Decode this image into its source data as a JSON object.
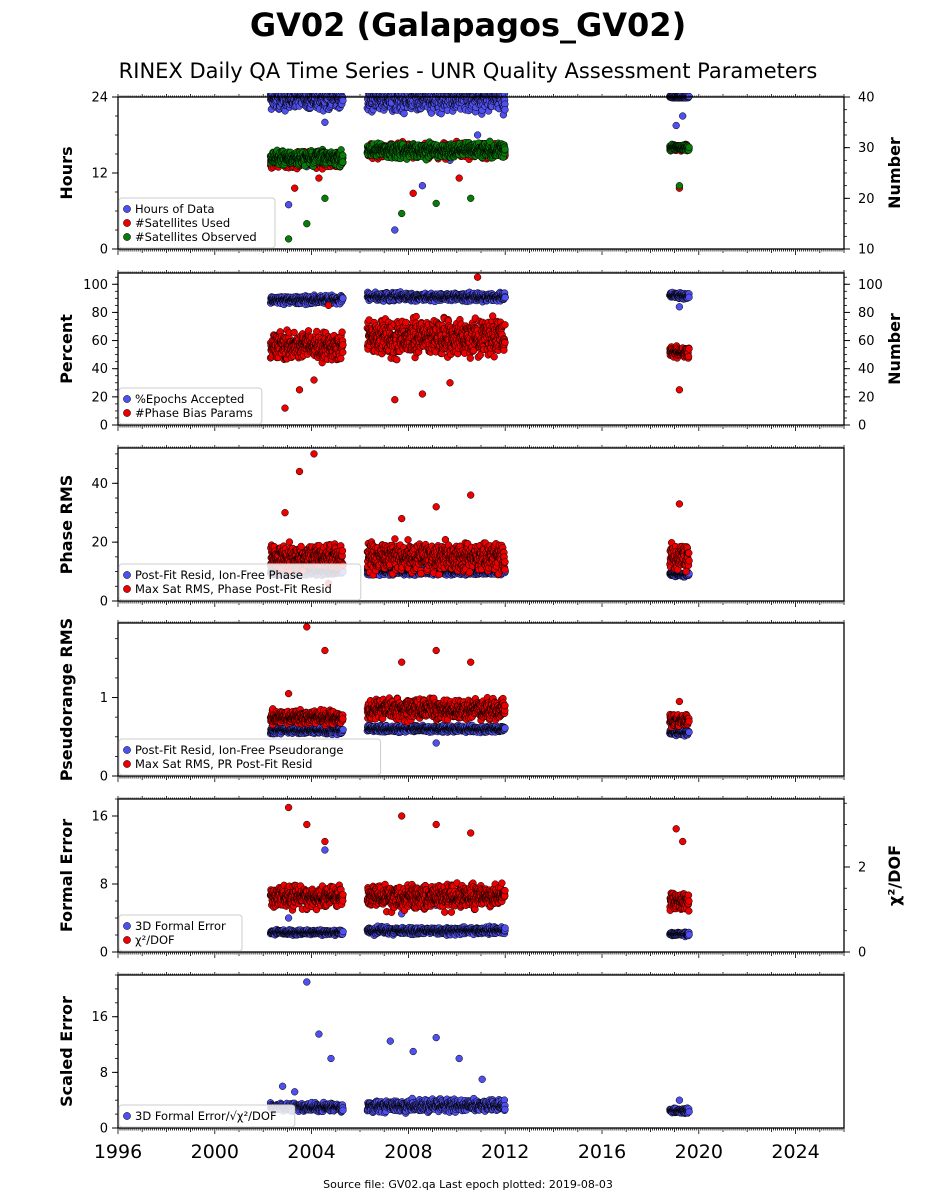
{
  "title": "GV02 (Galapagos_GV02)",
  "subtitle": "RINEX Daily QA Time Series - UNR Quality Assessment Parameters",
  "footer": "Source file: GV02.qa Last epoch plotted: 2019-08-03",
  "colors": {
    "blue": "#5050f0",
    "red": "#ee0000",
    "green": "#0a7a0a",
    "edge": "#000000"
  },
  "chart_data": [
    {
      "type": "scatter",
      "ylabel": "Hours",
      "ylabel2": "Number",
      "ylim": [
        0,
        24
      ],
      "yticks": [
        "0",
        "12",
        "24"
      ],
      "ylim2": [
        10,
        40
      ],
      "yticks2": [
        "10",
        "20",
        "30",
        "40"
      ],
      "xlim": [
        1996,
        2026
      ],
      "legend": [
        "Hours of Data",
        "#Satellites Used",
        "#Satellites Observed"
      ],
      "series": [
        {
          "name": "Hours of Data",
          "axis": "left",
          "color": "blue",
          "segments": [
            {
              "x": [
                2002.3,
                2005.3
              ],
              "base": 23.8,
              "spread": 2.5,
              "outliers": [
                7.0,
                13.0,
                20.0
              ]
            },
            {
              "x": [
                2006.3,
                2012.0
              ],
              "base": 23.8,
              "spread": 3.0,
              "outliers": [
                3.0,
                10.0,
                14.0,
                18.0
              ]
            },
            {
              "x": [
                2018.8,
                2019.6
              ],
              "base": 24.0,
              "spread": 0.3,
              "outliers": [
                19.5,
                21.0
              ]
            }
          ]
        },
        {
          "name": "#Satellites Used",
          "axis": "right",
          "color": "red",
          "segments": [
            {
              "x": [
                2002.3,
                2005.3
              ],
              "base": 27.5,
              "spread": 2.0,
              "outliers": [
                22.0,
                24.0
              ]
            },
            {
              "x": [
                2006.3,
                2012.0
              ],
              "base": 29.5,
              "spread": 2.0,
              "outliers": [
                21.0,
                24.0
              ]
            },
            {
              "x": [
                2018.8,
                2019.6
              ],
              "base": 30.0,
              "spread": 0.8,
              "outliers": [
                22.0
              ]
            }
          ]
        },
        {
          "name": "#Satellites Observed",
          "axis": "right",
          "color": "green",
          "segments": [
            {
              "x": [
                2002.3,
                2005.3
              ],
              "base": 28.0,
              "spread": 2.0,
              "outliers": [
                12.0,
                15.0,
                20.0
              ]
            },
            {
              "x": [
                2006.3,
                2012.0
              ],
              "base": 29.5,
              "spread": 2.0,
              "outliers": [
                17.0,
                19.0,
                20.0
              ]
            },
            {
              "x": [
                2018.8,
                2019.6
              ],
              "base": 30.0,
              "spread": 0.8,
              "outliers": [
                22.5
              ]
            }
          ]
        }
      ]
    },
    {
      "type": "scatter",
      "ylabel": "Percent",
      "ylabel2": "Number",
      "ylim": [
        0,
        108
      ],
      "yticks": [
        "0",
        "20",
        "40",
        "60",
        "80",
        "100"
      ],
      "ylim2": [
        0,
        108
      ],
      "yticks2": [
        "0",
        "20",
        "40",
        "60",
        "80",
        "100"
      ],
      "xlim": [
        1996,
        2026
      ],
      "legend": [
        "%Epochs Accepted",
        "#Phase Bias Params"
      ],
      "series": [
        {
          "name": "%Epochs Accepted",
          "axis": "left",
          "color": "blue",
          "segments": [
            {
              "x": [
                2002.3,
                2005.3
              ],
              "base": 89,
              "spread": 4,
              "outliers": []
            },
            {
              "x": [
                2006.3,
                2012.0
              ],
              "base": 91,
              "spread": 4,
              "outliers": []
            },
            {
              "x": [
                2018.8,
                2019.6
              ],
              "base": 92,
              "spread": 3,
              "outliers": [
                84
              ]
            }
          ]
        },
        {
          "name": "#Phase Bias Params",
          "axis": "right",
          "color": "red",
          "segments": [
            {
              "x": [
                2002.3,
                2005.3
              ],
              "base": 56,
              "spread": 14,
              "outliers": [
                12,
                25,
                32,
                85
              ]
            },
            {
              "x": [
                2006.3,
                2012.0
              ],
              "base": 62,
              "spread": 18,
              "outliers": [
                18,
                22,
                30,
                105
              ]
            },
            {
              "x": [
                2018.8,
                2019.6
              ],
              "base": 52,
              "spread": 6,
              "outliers": [
                25
              ]
            }
          ]
        }
      ]
    },
    {
      "type": "scatter",
      "ylabel": "Phase RMS",
      "ylim": [
        0,
        52
      ],
      "yticks": [
        "0",
        "20",
        "40"
      ],
      "xlim": [
        1996,
        2026
      ],
      "legend": [
        "Post-Fit Resid, Ion-Free Phase",
        "Max Sat RMS, Phase Post-Fit Resid"
      ],
      "series": [
        {
          "name": "Post-Fit Resid, Ion-Free Phase",
          "axis": "left",
          "color": "blue",
          "segments": [
            {
              "x": [
                2002.3,
                2005.3
              ],
              "base": 10,
              "spread": 1.5,
              "outliers": []
            },
            {
              "x": [
                2006.3,
                2012.0
              ],
              "base": 10,
              "spread": 1.5,
              "outliers": []
            },
            {
              "x": [
                2018.8,
                2019.6
              ],
              "base": 9,
              "spread": 1.0,
              "outliers": []
            }
          ]
        },
        {
          "name": "Max Sat RMS, Phase Post-Fit Resid",
          "axis": "left",
          "color": "red",
          "segments": [
            {
              "x": [
                2002.3,
                2005.3
              ],
              "base": 15,
              "spread": 6,
              "outliers": [
                30,
                44,
                50,
                6
              ]
            },
            {
              "x": [
                2006.3,
                2012.0
              ],
              "base": 15,
              "spread": 7,
              "outliers": [
                28,
                32,
                36
              ]
            },
            {
              "x": [
                2018.8,
                2019.6
              ],
              "base": 15,
              "spread": 6,
              "outliers": [
                33
              ]
            }
          ]
        }
      ]
    },
    {
      "type": "scatter",
      "ylabel": "Pseudorange RMS",
      "ylim": [
        0,
        1.95
      ],
      "yticks": [
        "0",
        "1"
      ],
      "xlim": [
        1996,
        2026
      ],
      "legend": [
        "Post-Fit Resid, Ion-Free Pseudorange",
        "Max Sat RMS, PR Post-Fit Resid"
      ],
      "series": [
        {
          "name": "Post-Fit Resid, Ion-Free Pseudorange",
          "axis": "left",
          "color": "blue",
          "segments": [
            {
              "x": [
                2002.3,
                2005.3
              ],
              "base": 0.58,
              "spread": 0.06,
              "outliers": []
            },
            {
              "x": [
                2006.3,
                2012.0
              ],
              "base": 0.6,
              "spread": 0.06,
              "outliers": [
                0.42
              ]
            },
            {
              "x": [
                2018.8,
                2019.6
              ],
              "base": 0.55,
              "spread": 0.05,
              "outliers": []
            }
          ]
        },
        {
          "name": "Max Sat RMS, PR Post-Fit Resid",
          "axis": "left",
          "color": "red",
          "segments": [
            {
              "x": [
                2002.3,
                2005.3
              ],
              "base": 0.75,
              "spread": 0.12,
              "outliers": [
                1.05,
                1.9,
                1.6
              ]
            },
            {
              "x": [
                2006.3,
                2012.0
              ],
              "base": 0.85,
              "spread": 0.18,
              "outliers": [
                1.45,
                1.6,
                1.45
              ]
            },
            {
              "x": [
                2018.8,
                2019.6
              ],
              "base": 0.7,
              "spread": 0.12,
              "outliers": [
                0.95
              ]
            }
          ]
        }
      ]
    },
    {
      "type": "scatter",
      "ylabel": "Formal Error",
      "ylabel2": "χ²/DOF",
      "ylim": [
        0,
        18
      ],
      "yticks": [
        "0",
        "8",
        "16"
      ],
      "ylim2": [
        0,
        3.6
      ],
      "yticks2": [
        "0",
        "2"
      ],
      "xlim": [
        1996,
        2026
      ],
      "legend": [
        "3D Formal Error",
        "χ²/DOF"
      ],
      "series": [
        {
          "name": "3D Formal Error",
          "axis": "left",
          "color": "blue",
          "segments": [
            {
              "x": [
                2002.3,
                2005.3
              ],
              "base": 2.3,
              "spread": 0.4,
              "outliers": [
                4.0,
                5.0,
                12.0
              ]
            },
            {
              "x": [
                2006.3,
                2012.0
              ],
              "base": 2.5,
              "spread": 0.6,
              "outliers": [
                4.5,
                5.5,
                7.5
              ]
            },
            {
              "x": [
                2018.8,
                2019.6
              ],
              "base": 2.1,
              "spread": 0.3,
              "outliers": []
            }
          ]
        },
        {
          "name": "χ²/DOF",
          "axis": "right",
          "color": "red",
          "segments": [
            {
              "x": [
                2002.3,
                2005.3
              ],
              "base": 1.3,
              "spread": 0.35,
              "outliers": [
                3.4,
                3.0,
                2.6
              ]
            },
            {
              "x": [
                2006.3,
                2012.0
              ],
              "base": 1.3,
              "spread": 0.4,
              "outliers": [
                3.2,
                3.0,
                2.8
              ]
            },
            {
              "x": [
                2018.8,
                2019.6
              ],
              "base": 1.2,
              "spread": 0.3,
              "outliers": [
                2.9,
                2.6
              ]
            }
          ]
        }
      ]
    },
    {
      "type": "scatter",
      "ylabel": "Scaled Error",
      "ylim": [
        0,
        22
      ],
      "yticks": [
        "0",
        "8",
        "16"
      ],
      "xlim": [
        1996,
        2026
      ],
      "legend": [
        "3D Formal Error/√χ²/DOF"
      ],
      "series": [
        {
          "name": "3D Formal Error/√χ²/DOF",
          "axis": "left",
          "color": "blue",
          "segments": [
            {
              "x": [
                2002.3,
                2005.3
              ],
              "base": 3.0,
              "spread": 0.8,
              "outliers": [
                6.0,
                5.2,
                21.0,
                13.5,
                10.0
              ]
            },
            {
              "x": [
                2006.3,
                2012.0
              ],
              "base": 3.2,
              "spread": 1.2,
              "outliers": [
                12.5,
                11.0,
                13.0,
                10.0,
                7.0
              ]
            },
            {
              "x": [
                2018.8,
                2019.6
              ],
              "base": 2.5,
              "spread": 0.5,
              "outliers": [
                4.0
              ]
            }
          ]
        }
      ]
    }
  ],
  "xaxis": {
    "ticks": [
      "1996",
      "2000",
      "2004",
      "2008",
      "2012",
      "2016",
      "2020",
      "2024"
    ],
    "tick_values": [
      1996,
      2000,
      2004,
      2008,
      2012,
      2016,
      2020,
      2024
    ]
  }
}
